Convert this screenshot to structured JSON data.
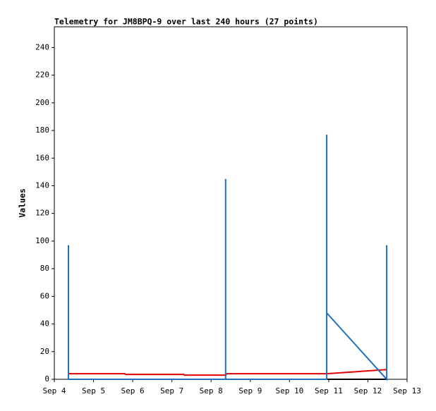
{
  "chart_data": {
    "type": "line",
    "title": "Telemetry for JM8BPQ-9 over last 240 hours (27 points)",
    "ylabel": "Values",
    "xlim": [
      4,
      13
    ],
    "xticks": [
      {
        "value": 4,
        "label": "Sep 4"
      },
      {
        "value": 5,
        "label": "Sep 5"
      },
      {
        "value": 6,
        "label": "Sep 6"
      },
      {
        "value": 7,
        "label": "Sep 7"
      },
      {
        "value": 8,
        "label": "Sep 8"
      },
      {
        "value": 9,
        "label": "Sep 9"
      },
      {
        "value": 10,
        "label": "Sep 10"
      },
      {
        "value": 11,
        "label": "Sep 11"
      },
      {
        "value": 12,
        "label": "Sep 12"
      },
      {
        "value": 13,
        "label": "Sep 13"
      }
    ],
    "ylim": [
      0,
      255
    ],
    "yticks": [
      0,
      20,
      40,
      60,
      80,
      100,
      120,
      140,
      160,
      180,
      200,
      220,
      240
    ],
    "series": [
      {
        "color": "#000000",
        "x": [
          4.36,
          12.48
        ],
        "values": [
          0,
          0
        ]
      },
      {
        "color": "#e00000",
        "x": [
          4.36,
          5.8,
          5.82,
          7.3,
          7.32,
          8.37,
          8.4,
          10.95,
          12.48
        ],
        "values": [
          4,
          4,
          3.5,
          3.5,
          3,
          3,
          4,
          4,
          7
        ]
      },
      {
        "color": "#1f6fc0",
        "x": [
          4.36,
          4.36,
          4.36,
          8.37,
          8.37,
          8.37,
          10.95,
          10.95,
          10.95,
          12.48,
          12.48
        ],
        "values": [
          0,
          97,
          0,
          0,
          145,
          0,
          0,
          177,
          48,
          0,
          97
        ]
      }
    ]
  }
}
